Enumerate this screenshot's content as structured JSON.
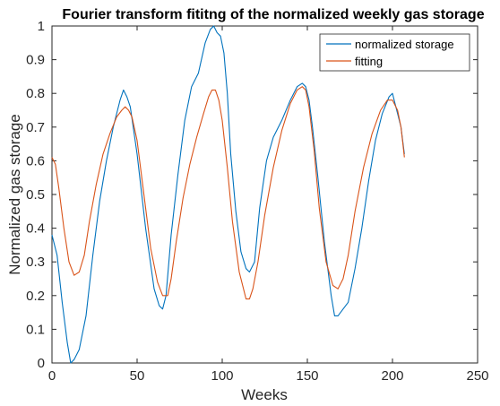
{
  "chart_data": {
    "type": "line",
    "title": "Fourier transform fititng of the normalized weekly gas storage",
    "xlabel": "Weeks",
    "ylabel": "Normalized gas storage",
    "xlim": [
      0,
      250
    ],
    "ylim": [
      0,
      1
    ],
    "xticks": [
      0,
      50,
      100,
      150,
      200,
      250
    ],
    "yticks": [
      0,
      0.1,
      0.2,
      0.3,
      0.4,
      0.5,
      0.6,
      0.7,
      0.8,
      0.9,
      1
    ],
    "grid": false,
    "legend_position": "top-right",
    "series": [
      {
        "name": "normalized storage",
        "color": "#0072BD",
        "x": [
          0,
          3,
          6,
          9,
          11,
          13,
          16,
          20,
          24,
          28,
          32,
          36,
          40,
          42,
          43,
          44,
          46,
          50,
          55,
          60,
          63,
          65,
          67,
          70,
          74,
          78,
          82,
          86,
          90,
          93,
          95,
          97,
          99,
          101,
          103,
          105,
          108,
          111,
          114,
          116,
          119,
          122,
          126,
          130,
          135,
          140,
          144,
          147,
          149,
          151,
          153,
          156,
          160,
          164,
          166,
          168,
          171,
          174,
          178,
          182,
          186,
          190,
          194,
          198,
          200,
          202,
          205,
          207
        ],
        "y": [
          0.38,
          0.32,
          0.18,
          0.06,
          0.0,
          0.01,
          0.04,
          0.14,
          0.32,
          0.48,
          0.6,
          0.7,
          0.78,
          0.81,
          0.8,
          0.79,
          0.76,
          0.62,
          0.4,
          0.22,
          0.17,
          0.16,
          0.2,
          0.38,
          0.56,
          0.72,
          0.82,
          0.86,
          0.95,
          0.99,
          1.0,
          0.98,
          0.97,
          0.92,
          0.8,
          0.62,
          0.45,
          0.33,
          0.28,
          0.27,
          0.3,
          0.46,
          0.6,
          0.67,
          0.72,
          0.78,
          0.82,
          0.83,
          0.82,
          0.78,
          0.7,
          0.56,
          0.36,
          0.2,
          0.14,
          0.14,
          0.16,
          0.18,
          0.28,
          0.4,
          0.54,
          0.66,
          0.74,
          0.79,
          0.8,
          0.76,
          0.7,
          0.62
        ]
      },
      {
        "name": "fitting",
        "color": "#D95319",
        "x": [
          0,
          2,
          4,
          7,
          10,
          13,
          16,
          19,
          22,
          26,
          30,
          34,
          38,
          41,
          43,
          45,
          47,
          50,
          54,
          58,
          62,
          65,
          68,
          70,
          73,
          77,
          81,
          85,
          89,
          92,
          94,
          96,
          98,
          100,
          103,
          106,
          110,
          114,
          116,
          118,
          121,
          125,
          130,
          135,
          140,
          144,
          147,
          149,
          151,
          154,
          157,
          161,
          165,
          168,
          171,
          174,
          178,
          183,
          188,
          193,
          197,
          200,
          203,
          205,
          207
        ],
        "y": [
          0.61,
          0.59,
          0.52,
          0.4,
          0.3,
          0.26,
          0.27,
          0.32,
          0.42,
          0.53,
          0.62,
          0.68,
          0.73,
          0.75,
          0.76,
          0.75,
          0.73,
          0.66,
          0.5,
          0.34,
          0.24,
          0.2,
          0.2,
          0.25,
          0.36,
          0.49,
          0.59,
          0.67,
          0.74,
          0.79,
          0.81,
          0.81,
          0.78,
          0.72,
          0.58,
          0.42,
          0.27,
          0.19,
          0.19,
          0.22,
          0.3,
          0.44,
          0.58,
          0.69,
          0.77,
          0.81,
          0.82,
          0.81,
          0.76,
          0.63,
          0.46,
          0.3,
          0.23,
          0.22,
          0.25,
          0.32,
          0.45,
          0.58,
          0.68,
          0.75,
          0.78,
          0.78,
          0.75,
          0.7,
          0.61
        ]
      }
    ]
  }
}
